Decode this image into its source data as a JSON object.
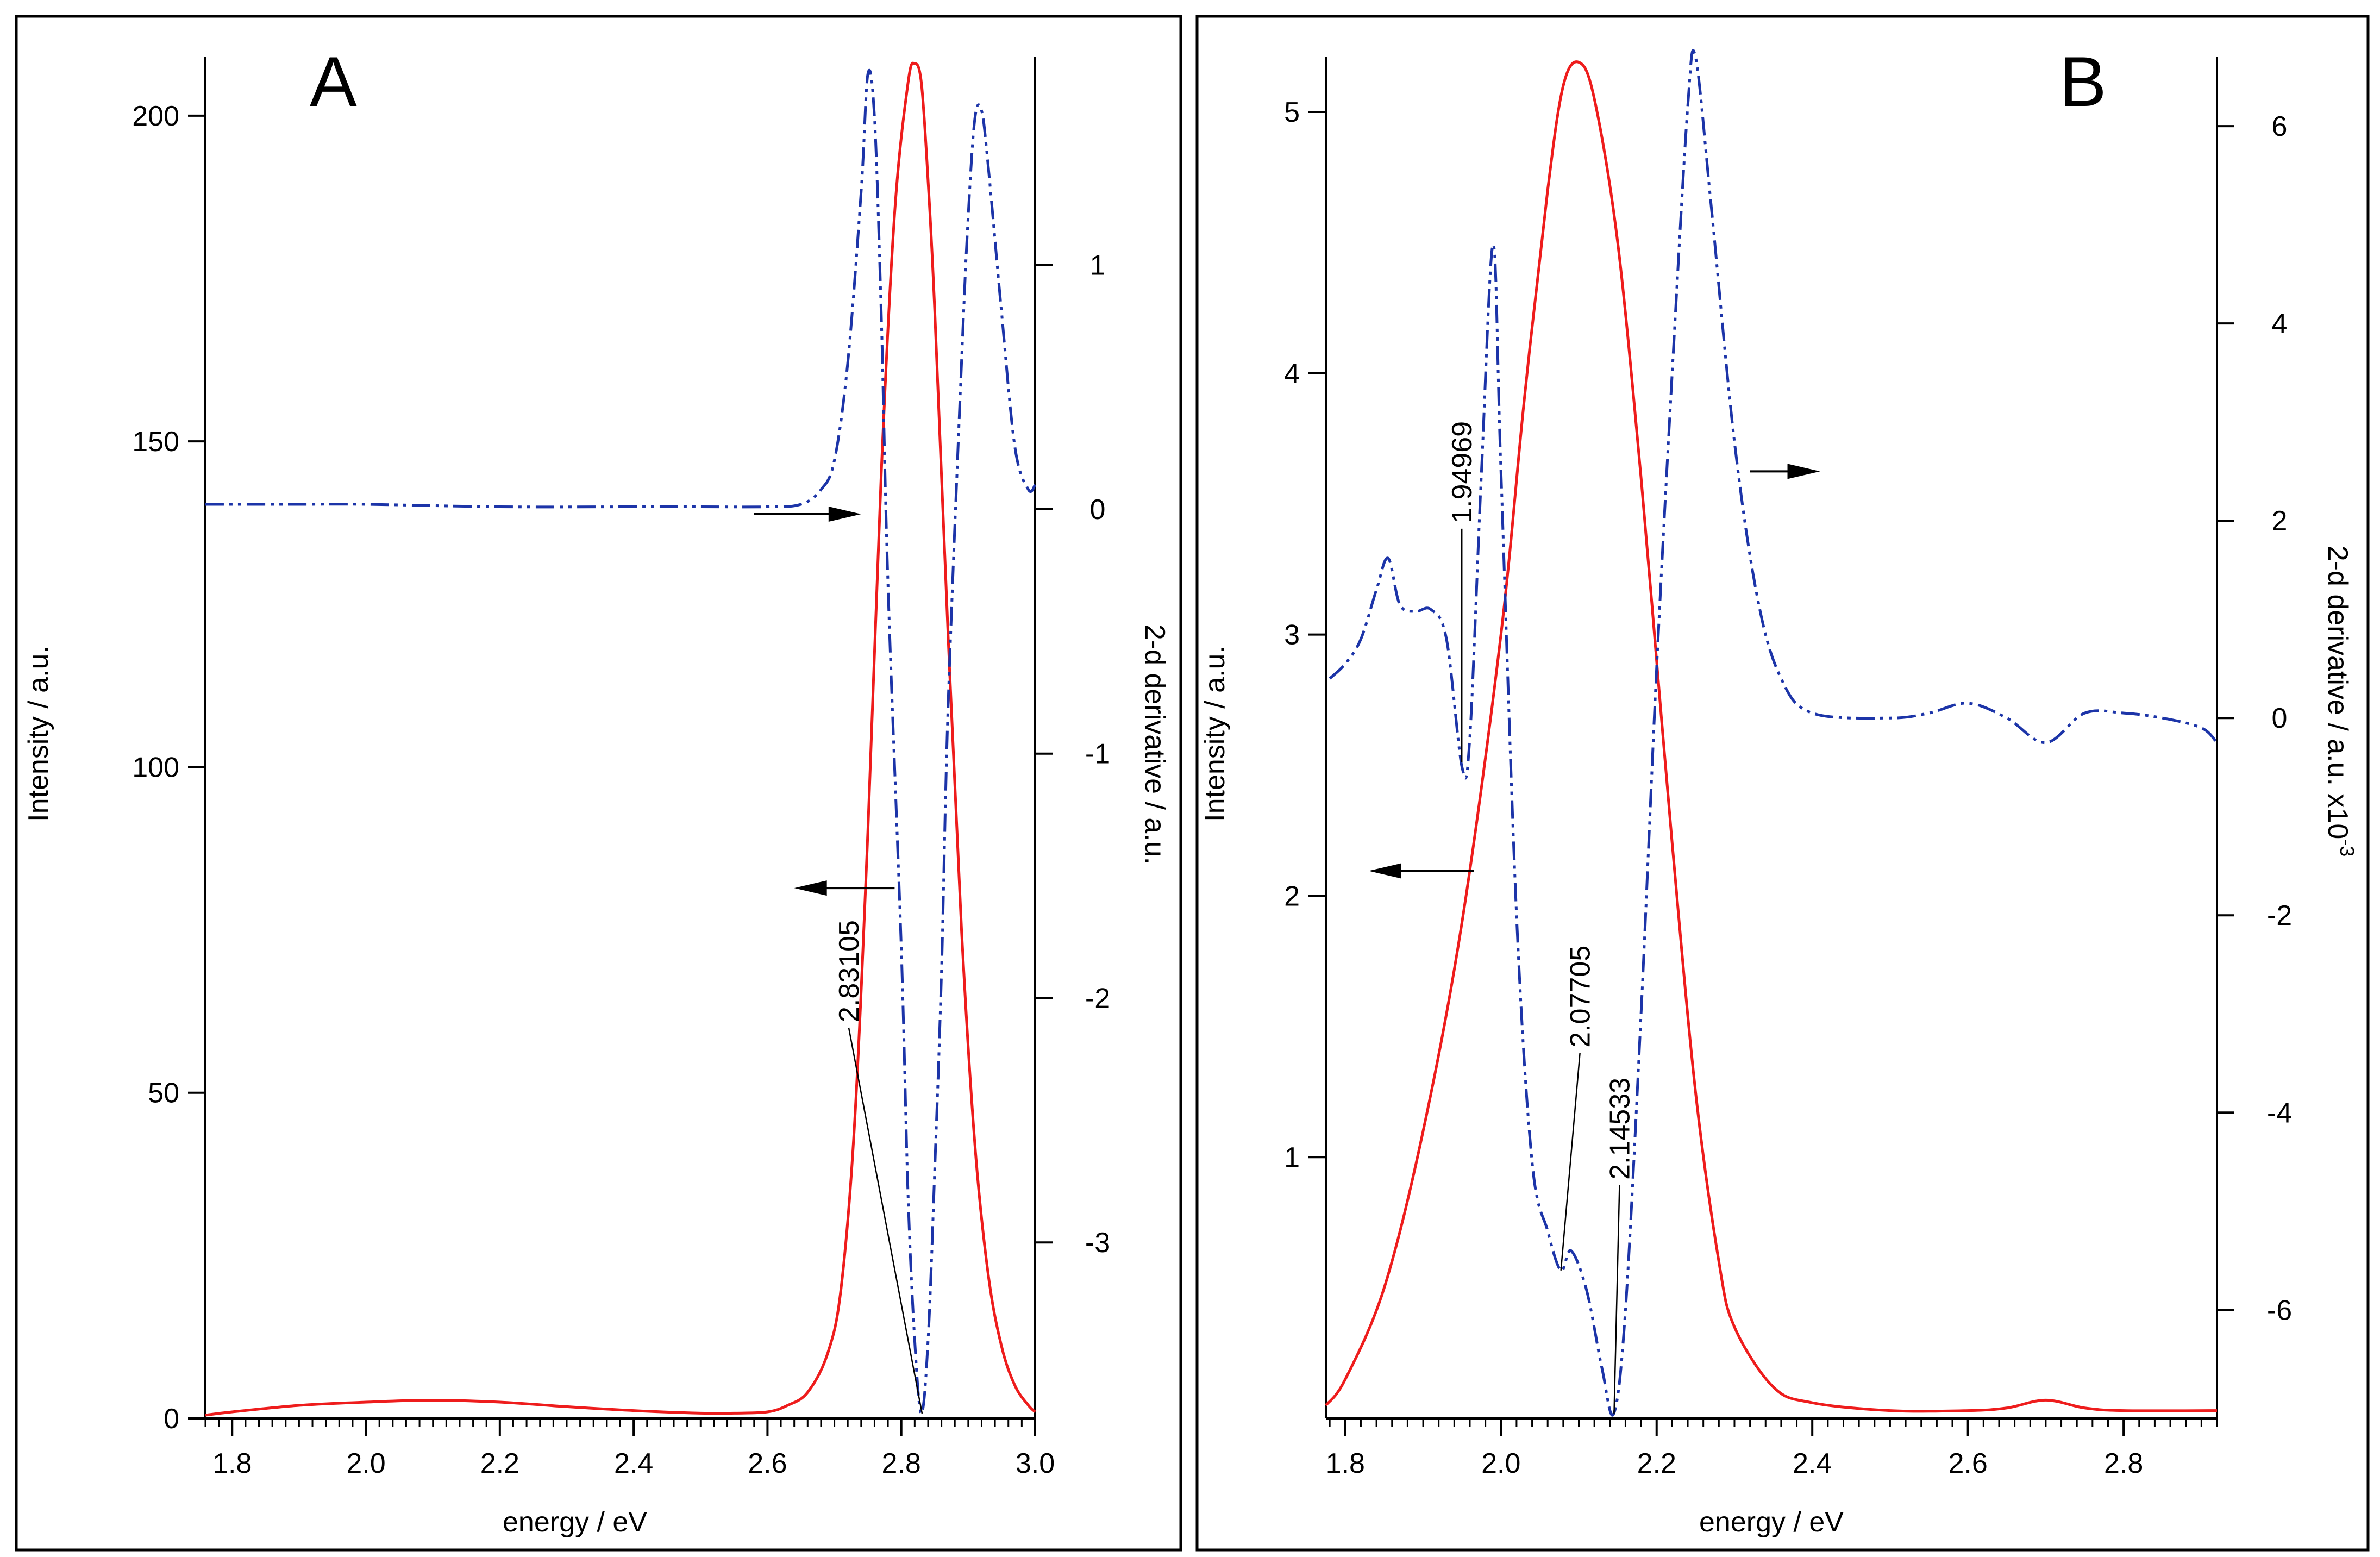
{
  "figure_type": "two-panel spectrum with second-derivative overlay",
  "colors": {
    "spectrum": "#ee1c1c",
    "derivative": "#1c34a8",
    "axes": "#000000",
    "background": "#ffffff"
  },
  "chart_data": [
    {
      "panel": "A",
      "type": "line",
      "title": "",
      "xlabel": "energy / eV",
      "ylabel": "Intensity / a.u.",
      "y2label": "2-d derivative / a.u.",
      "xlim": [
        1.76,
        3.0
      ],
      "ylim": [
        0,
        209
      ],
      "y2lim": [
        -3.72,
        1.85
      ],
      "x_ticks": [
        1.8,
        2.0,
        2.2,
        2.4,
        2.6,
        2.8,
        3.0
      ],
      "x_tick_labels": [
        "1.8",
        "2.0",
        "2.2",
        "2.4",
        "2.6",
        "2.8",
        "3.0"
      ],
      "y_ticks": [
        0,
        50,
        100,
        150,
        200
      ],
      "y_tick_labels": [
        "0",
        "50",
        "100",
        "150",
        "200"
      ],
      "y2_ticks": [
        -3,
        -2,
        -1,
        0,
        1
      ],
      "y2_tick_labels": [
        "-3",
        "-2",
        "-1",
        "0",
        "1"
      ],
      "series": [
        {
          "name": "Intensity",
          "axis": "left",
          "style": "solid",
          "x": [
            1.76,
            1.8,
            1.9,
            2.0,
            2.1,
            2.2,
            2.3,
            2.4,
            2.5,
            2.55,
            2.6,
            2.63,
            2.66,
            2.69,
            2.71,
            2.73,
            2.75,
            2.77,
            2.79,
            2.81,
            2.82,
            2.83,
            2.84,
            2.85,
            2.87,
            2.89,
            2.91,
            2.93,
            2.95,
            2.97,
            2.99,
            3.0
          ],
          "values": [
            0.5,
            1,
            2,
            2.5,
            2.8,
            2.5,
            1.8,
            1.2,
            0.8,
            0.8,
            1,
            2,
            4,
            10,
            20,
            45,
            90,
            145,
            185,
            205,
            208,
            205,
            190,
            170,
            120,
            75,
            42,
            22,
            11,
            5,
            2,
            1
          ]
        },
        {
          "name": "2-d derivative",
          "axis": "right",
          "style": "dash-dot-dot",
          "x": [
            1.76,
            1.9,
            2.0,
            2.2,
            2.4,
            2.5,
            2.6,
            2.65,
            2.68,
            2.7,
            2.72,
            2.74,
            2.75,
            2.76,
            2.77,
            2.78,
            2.8,
            2.81,
            2.82,
            2.83,
            2.84,
            2.85,
            2.86,
            2.87,
            2.89,
            2.9,
            2.91,
            2.92,
            2.93,
            2.95,
            2.97,
            2.99,
            3.0
          ],
          "values": [
            0.02,
            0.02,
            0.02,
            0.01,
            0.01,
            0.01,
            0.01,
            0.02,
            0.08,
            0.2,
            0.6,
            1.3,
            1.78,
            1.6,
            0.8,
            -0.3,
            -1.8,
            -2.8,
            -3.4,
            -3.7,
            -3.4,
            -2.7,
            -1.9,
            -0.8,
            0.6,
            1.2,
            1.6,
            1.63,
            1.4,
            0.8,
            0.25,
            0.08,
            0.1
          ]
        }
      ],
      "arrows": [
        {
          "direction": "right",
          "x_from": 2.58,
          "x_to": 2.74,
          "y2": -0.02
        },
        {
          "direction": "left",
          "x_from": 2.79,
          "x_to": 2.64,
          "y2": -1.55
        }
      ],
      "annotations": [
        {
          "text": "2.83105",
          "x": 2.83105,
          "y2": -3.7
        }
      ],
      "panel_label": "A"
    },
    {
      "panel": "B",
      "type": "line",
      "title": "",
      "xlabel": "energy / eV",
      "ylabel": "Intensity / a.u.",
      "y2label": "2-d derivative / a.u. x10",
      "y2label_superscript": "-3",
      "xlim": [
        1.775,
        2.92
      ],
      "ylim": [
        0.0,
        5.21
      ],
      "y2lim": [
        -7.1,
        6.7
      ],
      "x_ticks": [
        1.8,
        2.0,
        2.2,
        2.4,
        2.6,
        2.8
      ],
      "x_tick_labels": [
        "1.8",
        "2.0",
        "2.2",
        "2.4",
        "2.6",
        "2.8"
      ],
      "y_ticks": [
        1,
        2,
        3,
        4,
        5
      ],
      "y_tick_labels": [
        "1",
        "2",
        "3",
        "4",
        "5"
      ],
      "y2_ticks": [
        -6,
        -4,
        -2,
        0,
        2,
        4,
        6
      ],
      "y2_tick_labels": [
        "-6",
        "-4",
        "-2",
        "0",
        "2",
        "4",
        "6"
      ],
      "series": [
        {
          "name": "Intensity",
          "axis": "left",
          "style": "solid",
          "x": [
            1.775,
            1.8,
            1.85,
            1.9,
            1.95,
            2.0,
            2.03,
            2.06,
            2.08,
            2.1,
            2.12,
            2.15,
            2.18,
            2.2,
            2.22,
            2.25,
            2.28,
            2.3,
            2.35,
            2.4,
            2.5,
            2.6,
            2.65,
            2.7,
            2.75,
            2.8,
            2.92
          ],
          "values": [
            0.05,
            0.15,
            0.5,
            1.1,
            1.9,
            3.0,
            3.9,
            4.7,
            5.1,
            5.19,
            5.05,
            4.5,
            3.6,
            2.9,
            2.2,
            1.25,
            0.6,
            0.35,
            0.12,
            0.06,
            0.03,
            0.03,
            0.04,
            0.07,
            0.04,
            0.03,
            0.03
          ]
        },
        {
          "name": "2-d derivative",
          "axis": "right",
          "style": "dash-dot-dot",
          "x": [
            1.78,
            1.8,
            1.82,
            1.84,
            1.855,
            1.87,
            1.89,
            1.91,
            1.93,
            1.95,
            1.96,
            1.975,
            1.99,
            2.0,
            2.02,
            2.04,
            2.06,
            2.077,
            2.09,
            2.11,
            2.13,
            2.145,
            2.16,
            2.18,
            2.2,
            2.22,
            2.24,
            2.25,
            2.27,
            2.3,
            2.33,
            2.36,
            2.4,
            2.5,
            2.55,
            2.6,
            2.65,
            2.7,
            2.75,
            2.8,
            2.85,
            2.9,
            2.92
          ],
          "values": [
            0.4,
            0.55,
            0.8,
            1.3,
            1.62,
            1.15,
            1.08,
            1.1,
            0.8,
            -0.5,
            -0.2,
            2.5,
            4.8,
            2.5,
            -2.0,
            -4.5,
            -5.2,
            -5.6,
            -5.4,
            -5.8,
            -6.6,
            -7.05,
            -6.0,
            -3.0,
            0.5,
            3.5,
            6.2,
            6.7,
            5.2,
            2.8,
            1.2,
            0.4,
            0.05,
            0.0,
            0.05,
            0.15,
            0.0,
            -0.25,
            0.05,
            0.05,
            0.0,
            -0.1,
            -0.25
          ]
        }
      ],
      "arrows": [
        {
          "direction": "right",
          "x_from": 2.32,
          "x_to": 2.41,
          "y2": 2.5
        },
        {
          "direction": "left",
          "x_from": 1.965,
          "x_to": 1.83,
          "y2": -1.55
        }
      ],
      "annotations": [
        {
          "text": "1.94969",
          "x": 1.94969,
          "y2": -0.45
        },
        {
          "text": "2.07705",
          "x": 2.07705,
          "y2": -5.6
        },
        {
          "text": "2.14533",
          "x": 2.14533,
          "y2": -7.05
        }
      ],
      "panel_label": "B"
    }
  ]
}
